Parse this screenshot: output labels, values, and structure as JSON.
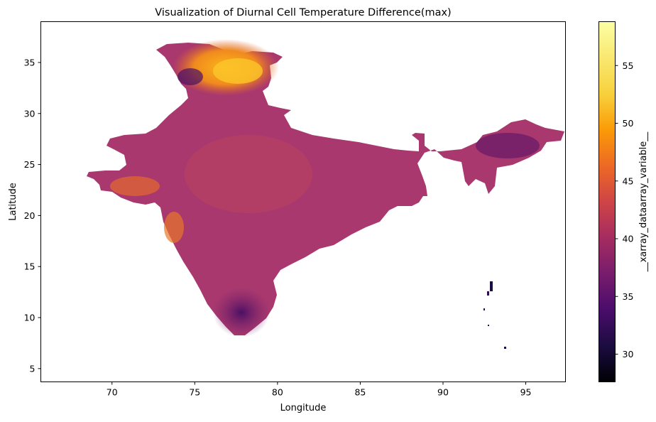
{
  "chart_data": {
    "type": "heatmap",
    "title": "Visualization of  Diurnal Cell Temperature Difference(max)",
    "xlabel": "Longitude",
    "ylabel": "Latitude",
    "xlim": [
      65.7,
      97.4
    ],
    "ylim": [
      3.7,
      39.0
    ],
    "x_ticks": [
      70,
      75,
      80,
      85,
      90,
      95
    ],
    "y_ticks": [
      5,
      10,
      15,
      20,
      25,
      30,
      35
    ],
    "colorbar": {
      "label": "__xarray_dataarray_variable__",
      "colormap": "inferno",
      "range": [
        27.6,
        58.8
      ],
      "ticks": [
        30,
        35,
        40,
        45,
        50,
        55
      ]
    },
    "grid": false,
    "regions": [
      {
        "name": "",
        "approx_value_range": [
          38,
          48
        ],
        "dominant_color": "#a8386e"
      },
      {
        "name": "",
        "approx_value_range": [
          50,
          58
        ],
        "dominant_color": "#f9a40c"
      },
      {
        "name": "",
        "approx_value_range": [
          30,
          40
        ],
        "dominant_color": "#3c0d64"
      }
    ]
  }
}
